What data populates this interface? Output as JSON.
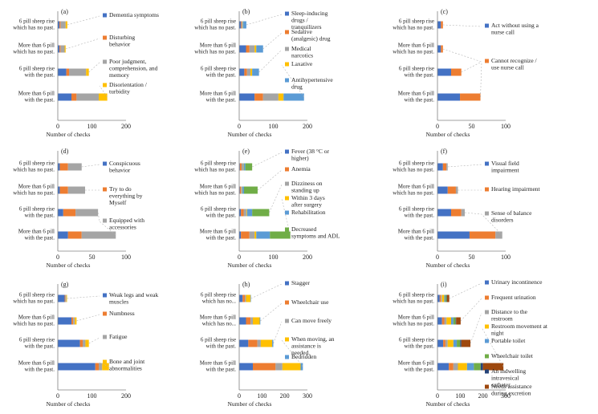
{
  "colors": [
    "#4472C4",
    "#ED7D31",
    "#A5A5A5",
    "#FFC000",
    "#5B9BD5",
    "#70AD47",
    "#264478",
    "#9E480E"
  ],
  "chart_data": [
    {
      "type": "bar",
      "stacked": true,
      "orientation": "horizontal",
      "panel": "(a)",
      "categories": [
        "6 pill sheep rise which has no past.",
        "More than 6 pill which has no past.",
        "6 pill sheep rise with the past.",
        "More than 6 pill with the past."
      ],
      "series": [
        {
          "name": "Dementia symptoms",
          "values": [
            5,
            5,
            25,
            40
          ]
        },
        {
          "name": "Disturbing behavior",
          "values": [
            3,
            3,
            8,
            15
          ]
        },
        {
          "name": "Poor judgment, comprehension, and memory",
          "values": [
            15,
            12,
            50,
            65
          ]
        },
        {
          "name": "Disorientation / turbidity",
          "values": [
            5,
            3,
            8,
            25
          ]
        }
      ],
      "xlabel": "Number of checks",
      "xlim": [
        0,
        200
      ],
      "xticks": [
        0,
        100,
        200
      ]
    },
    {
      "type": "bar",
      "stacked": true,
      "orientation": "horizontal",
      "panel": "(b)",
      "categories": [
        "6 pill sheep rise which has no past.",
        "More than 6 pill which has no past.",
        "6 pill sheep rise with the past.",
        "More than 6 pill with the past."
      ],
      "series": [
        {
          "name": "Sleep-inducing drugs / tranquilizers",
          "values": [
            5,
            20,
            15,
            45
          ]
        },
        {
          "name": "Sedative (analgesic) drug",
          "values": [
            2,
            10,
            8,
            25
          ]
        },
        {
          "name": "Medical narcotics",
          "values": [
            3,
            15,
            10,
            45
          ]
        },
        {
          "name": "Laxative",
          "values": [
            1,
            5,
            5,
            15
          ]
        },
        {
          "name": "Antihypertensive drug",
          "values": [
            10,
            20,
            20,
            60
          ]
        }
      ],
      "xlabel": "Number of checks",
      "xlim": [
        0,
        200
      ],
      "xticks": [
        0,
        100,
        200
      ]
    },
    {
      "type": "bar",
      "stacked": true,
      "orientation": "horizontal",
      "panel": "(c)",
      "categories": [
        "6 pill sheep rise which has no past.",
        "More than 6 pill which has no past.",
        "6 pill sheep rise with the past.",
        "More than 6 pill with the past."
      ],
      "series": [
        {
          "name": "Act without using a nurse call",
          "values": [
            5,
            5,
            20,
            33
          ]
        },
        {
          "name": "Cannot recognize / use nurse call",
          "values": [
            3,
            3,
            15,
            30
          ]
        }
      ],
      "xlabel": "Number of checks",
      "xlim": [
        0,
        100
      ],
      "xticks": [
        0,
        50,
        100
      ]
    },
    {
      "type": "bar",
      "stacked": true,
      "orientation": "horizontal",
      "panel": "(d)",
      "categories": [
        "6 pill sheep rise which has no past.",
        "More than 6 pill which has no past.",
        "6 pill sheep rise with the past.",
        "More than 6 pill with the past."
      ],
      "series": [
        {
          "name": "Conspicuous behavior",
          "values": [
            3,
            3,
            8,
            15
          ]
        },
        {
          "name": "Try to do everything by Myself",
          "values": [
            12,
            12,
            18,
            20
          ]
        },
        {
          "name": "Equipped with accessories",
          "values": [
            20,
            25,
            33,
            50
          ]
        }
      ],
      "xlabel": "Number of checks",
      "xlim": [
        0,
        100
      ],
      "xticks": [
        0,
        50,
        100
      ]
    },
    {
      "type": "bar",
      "stacked": true,
      "orientation": "horizontal",
      "panel": "(e)",
      "categories": [
        "6 pill sheep rise which has no past.",
        "More than 6 pill which has no past.",
        "6 pill sheep rise with the past.",
        "More than 6 pill with the past."
      ],
      "series": [
        {
          "name": "Fever (38 °C or higher)",
          "values": [
            2,
            2,
            5,
            5
          ]
        },
        {
          "name": "Anemia",
          "values": [
            5,
            3,
            8,
            25
          ]
        },
        {
          "name": "Dizziness on standing up",
          "values": [
            5,
            3,
            8,
            15
          ]
        },
        {
          "name": "Within 3 days after surgery",
          "values": [
            1,
            1,
            2,
            5
          ]
        },
        {
          "name": "Rehabilitation",
          "values": [
            5,
            5,
            15,
            40
          ]
        },
        {
          "name": "Decreased symptoms and ADL",
          "values": [
            20,
            40,
            50,
            60
          ]
        }
      ],
      "xlabel": "Number of checks",
      "xlim": [
        0,
        200
      ],
      "xticks": [
        0,
        100,
        200
      ]
    },
    {
      "type": "bar",
      "stacked": true,
      "orientation": "horizontal",
      "panel": "(f)",
      "categories": [
        "6 pill sheep rise which has no past.",
        "More than 6 pill which has no past.",
        "6 pill sheep rise with the past.",
        "More than 6 pill with the past."
      ],
      "series": [
        {
          "name": "Visual field impairment",
          "values": [
            8,
            15,
            20,
            47
          ]
        },
        {
          "name": "Hearing impairment",
          "values": [
            5,
            12,
            15,
            38
          ]
        },
        {
          "name": "Sense of balance disorders",
          "values": [
            2,
            3,
            5,
            10
          ]
        }
      ],
      "xlabel": "Number of checks",
      "xlim": [
        0,
        100
      ],
      "xticks": [
        0,
        50,
        100
      ]
    },
    {
      "type": "bar",
      "stacked": true,
      "orientation": "horizontal",
      "panel": "(g)",
      "categories": [
        "6 pill sheep rise which has no past.",
        "More than 6 pill which has no past.",
        "6 pill sheep rise with the past.",
        "More than 6 pill with the past."
      ],
      "series": [
        {
          "name": "Weak legs and weak muscles",
          "values": [
            20,
            40,
            65,
            110
          ]
        },
        {
          "name": "Numbness",
          "values": [
            2,
            5,
            8,
            10
          ]
        },
        {
          "name": "Fatigue",
          "values": [
            3,
            5,
            8,
            10
          ]
        },
        {
          "name": "Bone and joint abnormalities",
          "values": [
            2,
            5,
            10,
            20
          ]
        }
      ],
      "xlabel": "Number of checks",
      "xlim": [
        0,
        200
      ],
      "xticks": [
        0,
        100,
        200
      ]
    },
    {
      "type": "bar",
      "stacked": true,
      "orientation": "horizontal",
      "panel": "(h)",
      "categories": [
        "6 pill sheep rise which has no...",
        "More than 6 pill which has no...",
        "6 pill sheep rise with the past.",
        "More than 6 pill with the past."
      ],
      "series": [
        {
          "name": "Stagger",
          "values": [
            15,
            30,
            40,
            60
          ]
        },
        {
          "name": "Wheelchair use",
          "values": [
            10,
            20,
            40,
            100
          ]
        },
        {
          "name": "Can move freely",
          "values": [
            5,
            10,
            15,
            30
          ]
        },
        {
          "name": "When moving, an assistance is needed.",
          "values": [
            20,
            30,
            50,
            80
          ]
        },
        {
          "name": "Bedridden",
          "values": [
            2,
            3,
            5,
            10
          ]
        }
      ],
      "xlabel": "Number of checks",
      "xlim": [
        0,
        300
      ],
      "xticks": [
        0,
        100,
        200,
        300
      ]
    },
    {
      "type": "bar",
      "stacked": true,
      "orientation": "horizontal",
      "panel": "(i)",
      "categories": [
        "6 pill sheep rise which has no past.",
        "More than 6 pill which has no past.",
        "6 pill sheep rise with the past.",
        "More than 6 pill with the past."
      ],
      "series": [
        {
          "name": "Urinary incontinence",
          "values": [
            10,
            20,
            25,
            50
          ]
        },
        {
          "name": "Frequent urination",
          "values": [
            5,
            10,
            10,
            20
          ]
        },
        {
          "name": "Distance to the restroom",
          "values": [
            5,
            10,
            10,
            20
          ]
        },
        {
          "name": "Restroom movement at night",
          "values": [
            10,
            20,
            25,
            40
          ]
        },
        {
          "name": "Portable toilet",
          "values": [
            5,
            10,
            15,
            30
          ]
        },
        {
          "name": "Wheelchair toilet",
          "values": [
            5,
            10,
            15,
            30
          ]
        },
        {
          "name": "An indwelling intravesical catheter",
          "values": [
            2,
            2,
            5,
            10
          ]
        },
        {
          "name": "Needs assistance during excretion",
          "values": [
            10,
            20,
            40,
            90
          ]
        }
      ],
      "xlabel": "Number of checks",
      "xlim": [
        0,
        300
      ],
      "xticks": [
        0,
        100,
        200,
        300
      ]
    }
  ]
}
